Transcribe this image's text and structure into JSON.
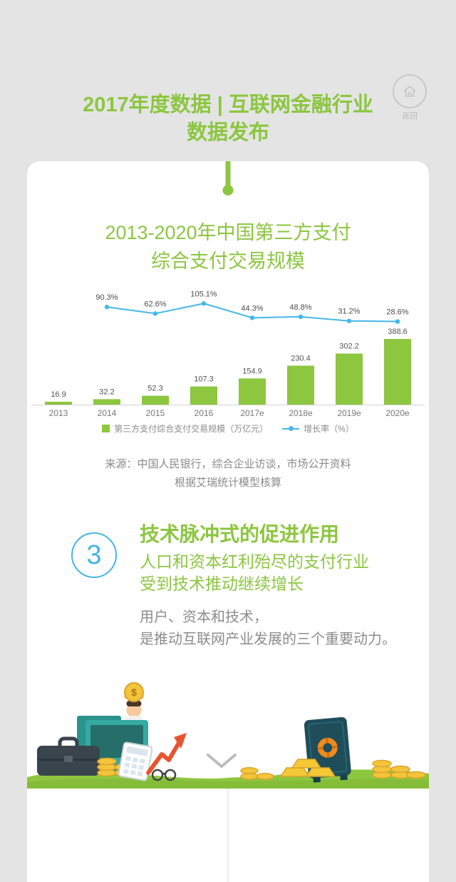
{
  "header": {
    "title_line1": "2017年度数据 | 互联网金融行业",
    "title_line2": "数据发布"
  },
  "back_button": {
    "label": "返回"
  },
  "card": {
    "chart_title_line1": "2013-2020年中国第三方支付",
    "chart_title_line2": "综合支付交易规模",
    "legend_bar_label": "第三方支付综合支付交易规模（万亿元）",
    "legend_line_label": "增长率（%）",
    "source_line1": "来源：中国人民银行，综合企业访谈，市场公开资料",
    "source_line2": "根据艾瑞统计模型核算",
    "section": {
      "number": "3",
      "title": "技术脉冲式的促进作用",
      "subtitle_line1": "人口和资本红利殆尽的支付行业",
      "subtitle_line2": "受到技术推动继续增长",
      "body_line1": "用户、资本和技术，",
      "body_line2": "是推动互联网产业发展的三个重要动力。"
    }
  },
  "illustration": {
    "coin_symbol": "$"
  },
  "colors": {
    "green": "#8cc63f",
    "bar_green": "#8dc63f",
    "line_blue": "#45b8e8",
    "badge_blue": "#44b6e4",
    "text_gray": "#8a8a8a",
    "background": "#e4e4e4"
  },
  "chart_data": {
    "type": "bar",
    "combo": "bar+line",
    "title": "2013-2020年中国第三方支付综合支付交易规模",
    "categories": [
      "2013",
      "2014",
      "2015",
      "2016",
      "2017e",
      "2018e",
      "2019e",
      "2020e"
    ],
    "series": [
      {
        "name": "第三方支付综合支付交易规模（万亿元）",
        "kind": "bar",
        "color": "#8dc63f",
        "values": [
          16.9,
          32.2,
          52.3,
          107.3,
          154.9,
          230.4,
          302.2,
          388.6
        ]
      },
      {
        "name": "增长率（%）",
        "kind": "line",
        "color": "#45b8e8",
        "values": [
          null,
          90.3,
          62.6,
          105.1,
          44.3,
          48.8,
          31.2,
          28.6
        ]
      }
    ],
    "xlabel": "",
    "ylabel": "",
    "grid": false,
    "legend_position": "bottom"
  }
}
